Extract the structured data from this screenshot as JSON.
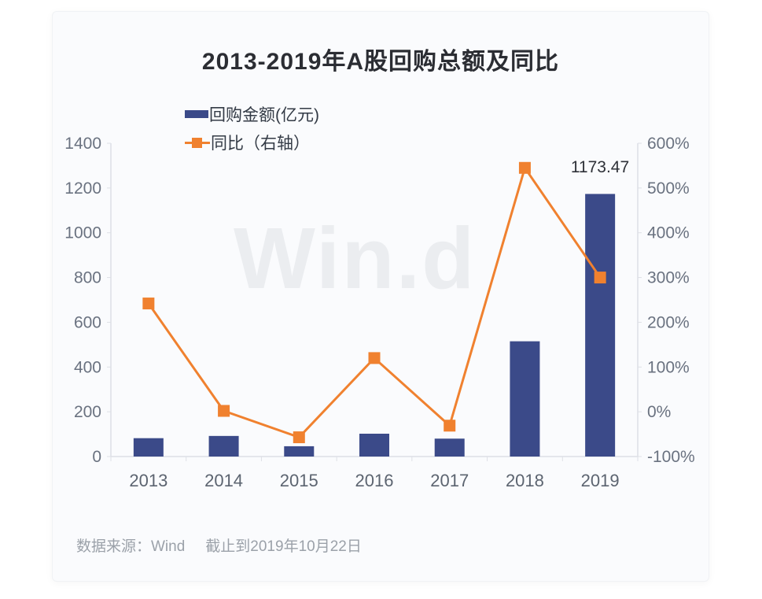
{
  "chart_data": {
    "type": "combo",
    "title": "2013-2019年A股回购总额及同比",
    "categories": [
      "2013",
      "2014",
      "2015",
      "2016",
      "2017",
      "2018",
      "2019"
    ],
    "series": [
      {
        "name": "回购金额(亿元)",
        "type": "bar",
        "axis": "left",
        "color": "#3B4A89",
        "values": [
          82,
          92,
          46,
          102,
          80,
          515,
          1173.47
        ]
      },
      {
        "name": "同比（右轴）",
        "type": "line",
        "axis": "right",
        "color": "#F0812F",
        "unit": "%",
        "values": [
          242,
          2,
          -57,
          120,
          -31,
          545,
          300
        ]
      }
    ],
    "left_axis": {
      "min": 0,
      "max": 1400,
      "step": 200
    },
    "right_axis": {
      "min": -100,
      "max": 600,
      "step": 100,
      "suffix": "%"
    },
    "legend_position": "top-left-stacked",
    "grid": false,
    "annotation": {
      "text": "1173.47",
      "category": "2019"
    },
    "watermark": "Win.d",
    "source": {
      "label": "数据来源：Wind",
      "note": "截止到2019年10月22日"
    }
  },
  "colors": {
    "bar": "#3B4A89",
    "line": "#F0812F",
    "axis_line": "#dde0e6",
    "axis_label": "#6a7280",
    "x_label": "#5c6470",
    "card_background": "#fafbfd",
    "watermark": "#ebedf0",
    "source_text": "#9ba1a9"
  }
}
